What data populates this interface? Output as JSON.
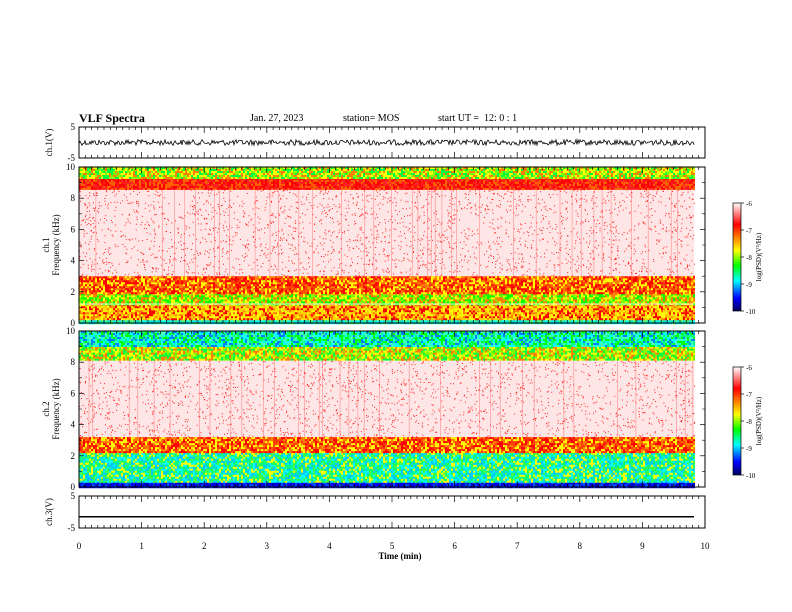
{
  "header": {
    "title": "VLF Spectra",
    "date": "Jan. 27, 2023",
    "station": "station= MOS",
    "start_ut": "start UT =  12: 0 : 1"
  },
  "chart_data": [
    {
      "panel": "ch1-waveform",
      "type": "line",
      "ylabel": "ch.1(V)",
      "ylim": [
        -5,
        5
      ],
      "yticks": [
        "5",
        "-5"
      ],
      "x_range_min": [
        0,
        9.83
      ],
      "baseline_value": 0,
      "noise_amplitude": 0.3
    },
    {
      "panel": "ch1-spectrogram",
      "type": "heatmap",
      "ylabel": "ch.1\nFrequency (kHz)",
      "ylim": [
        0,
        10
      ],
      "yticks": [
        "0",
        "2",
        "4",
        "6",
        "8",
        "10"
      ],
      "xlim": [
        0,
        10
      ],
      "data_extent_min": 9.83,
      "colorbar": {
        "label": "log(PSD)(V²/Hz)",
        "range": [
          -10,
          -6
        ],
        "ticks": [
          "-6",
          "-7",
          "-8",
          "-9",
          "-10"
        ]
      },
      "bands_khz": [
        {
          "from": 0,
          "to": 0.3,
          "level": "cyan"
        },
        {
          "from": 0.3,
          "to": 1.2,
          "level": "yellow-red"
        },
        {
          "from": 1.2,
          "to": 1.9,
          "level": "green-yellow"
        },
        {
          "from": 1.9,
          "to": 3.0,
          "level": "red-orange"
        },
        {
          "from": 3.0,
          "to": 8.6,
          "level": "sparse-red"
        },
        {
          "from": 8.6,
          "to": 9.3,
          "level": "red"
        },
        {
          "from": 9.3,
          "to": 10,
          "level": "yellow-green"
        }
      ]
    },
    {
      "panel": "ch2-spectrogram",
      "type": "heatmap",
      "ylabel": "ch.2\nFrequency (kHz)",
      "ylim": [
        0,
        10
      ],
      "yticks": [
        "0",
        "2",
        "4",
        "6",
        "8",
        "10"
      ],
      "xlim": [
        0,
        10
      ],
      "data_extent_min": 9.83,
      "colorbar": {
        "label": "log(PSD)(V²/Hz)",
        "range": [
          -10,
          -6
        ],
        "ticks": [
          "-6",
          "-7",
          "-8",
          "-9",
          "-10"
        ]
      },
      "bands_khz": [
        {
          "from": 0,
          "to": 0.3,
          "level": "blue"
        },
        {
          "from": 0.3,
          "to": 2.2,
          "level": "green-cyan"
        },
        {
          "from": 2.2,
          "to": 3.2,
          "level": "red-orange"
        },
        {
          "from": 3.2,
          "to": 8.2,
          "level": "sparse-red"
        },
        {
          "from": 8.2,
          "to": 9.0,
          "level": "yellow-green"
        },
        {
          "from": 9.0,
          "to": 10,
          "level": "cyan-green"
        }
      ]
    },
    {
      "panel": "ch3-waveform",
      "type": "line",
      "ylabel": "ch.3(V)",
      "ylim": [
        -5,
        5
      ],
      "yticks": [
        "5",
        "-5"
      ],
      "x_range_min": [
        0,
        9.83
      ],
      "baseline_value": -1.5,
      "noise_amplitude": 0
    }
  ],
  "xaxis": {
    "label": "Time (min)",
    "range": [
      0,
      10
    ],
    "ticks": [
      "0",
      "1",
      "2",
      "3",
      "4",
      "5",
      "6",
      "7",
      "8",
      "9",
      "10"
    ]
  },
  "colors": {
    "colormap": [
      "#00005a",
      "#0000ff",
      "#00ffff",
      "#00ff00",
      "#ffff00",
      "#ff8000",
      "#ff0000",
      "#ff6464"
    ]
  }
}
